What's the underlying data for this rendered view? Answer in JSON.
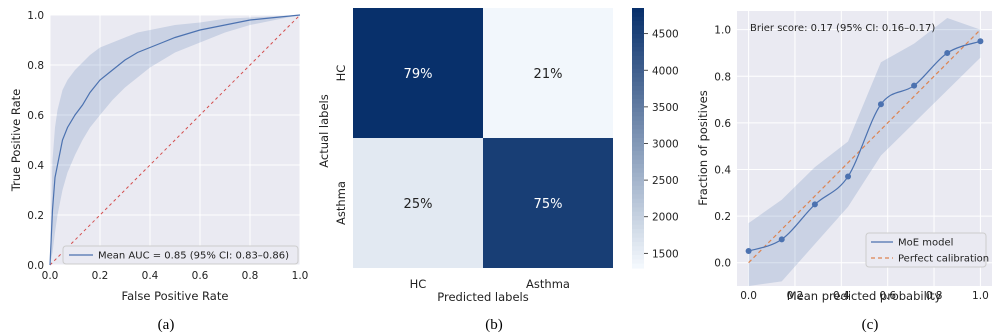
{
  "chart_data": [
    {
      "type": "line",
      "caption": "(a)",
      "xlabel": "False Positive Rate",
      "ylabel": "True Positive Rate",
      "xlim": [
        0,
        1
      ],
      "ylim": [
        0,
        1
      ],
      "xticks": [
        "0.0",
        "0.2",
        "0.4",
        "0.6",
        "0.8",
        "1.0"
      ],
      "yticks": [
        "0.0",
        "0.2",
        "0.4",
        "0.6",
        "0.8",
        "1.0"
      ],
      "grid": true,
      "legend_position": "lower-right",
      "series": [
        {
          "name": "Mean AUC = 0.85 (95% CI: 0.83–0.86)",
          "color": "#4c72b0",
          "x": [
            0,
            0.01,
            0.02,
            0.03,
            0.05,
            0.07,
            0.1,
            0.13,
            0.16,
            0.2,
            0.25,
            0.3,
            0.35,
            0.4,
            0.45,
            0.5,
            0.6,
            0.7,
            0.8,
            0.9,
            1.0
          ],
          "y": [
            0,
            0.22,
            0.35,
            0.4,
            0.5,
            0.55,
            0.6,
            0.64,
            0.69,
            0.74,
            0.78,
            0.82,
            0.85,
            0.87,
            0.89,
            0.91,
            0.94,
            0.96,
            0.98,
            0.99,
            1.0
          ],
          "ci_low": [
            0,
            0.05,
            0.13,
            0.2,
            0.3,
            0.37,
            0.44,
            0.5,
            0.55,
            0.6,
            0.66,
            0.71,
            0.75,
            0.79,
            0.82,
            0.85,
            0.89,
            0.93,
            0.96,
            0.98,
            1.0
          ],
          "ci_high": [
            0,
            0.42,
            0.55,
            0.62,
            0.7,
            0.74,
            0.78,
            0.81,
            0.84,
            0.87,
            0.89,
            0.91,
            0.93,
            0.94,
            0.95,
            0.96,
            0.97,
            0.985,
            0.99,
            0.995,
            1.0
          ]
        },
        {
          "name": "",
          "style": "dashed",
          "color": "#d45050",
          "x": [
            0,
            1
          ],
          "y": [
            0,
            1
          ]
        }
      ]
    },
    {
      "type": "heatmap",
      "caption": "(b)",
      "xlabel": "Predicted labels",
      "ylabel": "Actual labels",
      "x_categories": [
        "HC",
        "Asthma"
      ],
      "y_categories": [
        "HC",
        "Asthma"
      ],
      "cells": [
        [
          "79%",
          "21%"
        ],
        [
          "25%",
          "75%"
        ]
      ],
      "cell_fraction": [
        [
          0.79,
          0.21
        ],
        [
          0.25,
          0.75
        ]
      ],
      "colorbar": {
        "min": 1300,
        "max": 4850,
        "ticks": [
          1500,
          2000,
          2500,
          3000,
          3500,
          4000,
          4500
        ],
        "colormap": "Blues"
      }
    },
    {
      "type": "line",
      "caption": "(c)",
      "xlabel": "Mean predicted probability",
      "ylabel": "Fraction of positives",
      "annotation": "Brier score: 0.17 (95% CI: 0.16–0.17)",
      "xlim": [
        -0.05,
        1.05
      ],
      "ylim": [
        -0.1,
        1.08
      ],
      "xticks": [
        "0.0",
        "0.2",
        "0.4",
        "0.6",
        "0.8",
        "1.0"
      ],
      "yticks": [
        "0.0",
        "0.2",
        "0.4",
        "0.6",
        "0.8",
        "1.0"
      ],
      "grid": true,
      "legend_position": "lower-right",
      "series": [
        {
          "name": "MoE model",
          "color": "#4c72b0",
          "x": [
            0.0,
            0.143,
            0.286,
            0.429,
            0.571,
            0.714,
            0.857,
            1.0
          ],
          "y": [
            0.05,
            0.1,
            0.25,
            0.37,
            0.68,
            0.76,
            0.9,
            0.95
          ],
          "ci_low": [
            -0.1,
            -0.08,
            0.08,
            0.24,
            0.46,
            0.6,
            0.74,
            0.88
          ],
          "ci_high": [
            0.17,
            0.27,
            0.41,
            0.52,
            0.86,
            0.94,
            1.05,
            1.0
          ]
        },
        {
          "name": "Perfect calibration",
          "style": "dashed",
          "color": "#dd8452",
          "x": [
            0,
            1
          ],
          "y": [
            0,
            1
          ]
        }
      ]
    }
  ]
}
